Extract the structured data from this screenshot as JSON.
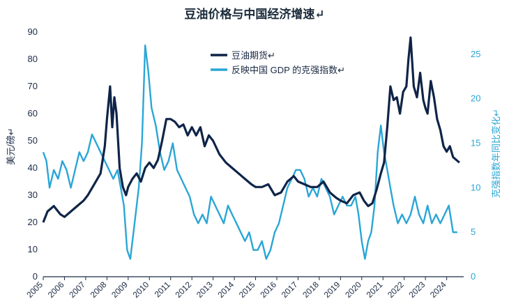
{
  "chart_data": {
    "type": "line",
    "title": "豆油价格与中国经济增速↵",
    "ylabel_left": "美元/磅↵",
    "ylabel_right": "克强指数年同比变化↵",
    "ylim_left": [
      0,
      90
    ],
    "ylim_right": [
      0,
      27.5
    ],
    "xlim": [
      2005,
      2024.8
    ],
    "grid": false,
    "legend_position": "top-center",
    "yticks_left": [
      "0",
      "10",
      "20",
      "30",
      "40",
      "50",
      "60",
      "70",
      "80",
      "90"
    ],
    "yticks_right": [
      "0",
      "5",
      "10",
      "15",
      "20",
      "25"
    ],
    "xticks": [
      "2005",
      "2006",
      "2007",
      "2008",
      "2009",
      "2010",
      "2011",
      "2012",
      "2013",
      "2014",
      "2015",
      "2016",
      "2017",
      "2018",
      "2019",
      "2020",
      "2021",
      "2022",
      "2023",
      "2024"
    ],
    "colors": {
      "soy": "#0f2448",
      "keqiang": "#2aa6d6"
    },
    "series": [
      {
        "name": "豆油期货↵",
        "axis": "left",
        "x": [
          2005.0,
          2005.2,
          2005.5,
          2005.8,
          2006.0,
          2006.3,
          2006.6,
          2006.9,
          2007.1,
          2007.4,
          2007.7,
          2007.9,
          2008.0,
          2008.15,
          2008.25,
          2008.35,
          2008.45,
          2008.6,
          2008.75,
          2008.9,
          2009.0,
          2009.2,
          2009.4,
          2009.6,
          2009.8,
          2010.0,
          2010.2,
          2010.4,
          2010.6,
          2010.8,
          2011.0,
          2011.2,
          2011.4,
          2011.6,
          2011.8,
          2012.0,
          2012.2,
          2012.4,
          2012.6,
          2012.8,
          2013.0,
          2013.3,
          2013.6,
          2013.9,
          2014.2,
          2014.5,
          2014.8,
          2015.0,
          2015.3,
          2015.6,
          2015.9,
          2016.2,
          2016.5,
          2016.8,
          2017.0,
          2017.3,
          2017.6,
          2017.9,
          2018.2,
          2018.5,
          2018.8,
          2019.0,
          2019.3,
          2019.6,
          2019.9,
          2020.1,
          2020.3,
          2020.5,
          2020.7,
          2020.9,
          2021.05,
          2021.2,
          2021.35,
          2021.5,
          2021.65,
          2021.8,
          2021.95,
          2022.1,
          2022.2,
          2022.3,
          2022.45,
          2022.6,
          2022.75,
          2022.9,
          2023.0,
          2023.1,
          2023.25,
          2023.4,
          2023.55,
          2023.7,
          2023.85,
          2024.0,
          2024.15,
          2024.3,
          2024.45,
          2024.6
        ],
        "values": [
          20,
          24,
          26,
          23,
          22,
          24,
          26,
          28,
          30,
          34,
          38,
          48,
          58,
          70,
          55,
          66,
          60,
          40,
          33,
          30,
          33,
          36,
          38,
          35,
          40,
          42,
          40,
          43,
          50,
          58,
          58,
          57,
          55,
          56,
          52,
          55,
          52,
          55,
          48,
          52,
          50,
          45,
          42,
          40,
          38,
          36,
          34,
          33,
          33,
          34,
          30,
          31,
          35,
          37,
          35,
          34,
          33,
          33,
          35,
          31,
          29,
          28,
          27,
          30,
          31,
          28,
          26,
          27,
          32,
          38,
          42,
          55,
          70,
          65,
          66,
          60,
          68,
          70,
          80,
          88,
          70,
          66,
          75,
          65,
          62,
          60,
          72,
          66,
          58,
          54,
          48,
          46,
          48,
          44,
          43,
          42
        ]
      },
      {
        "name": "反映中国 GDP 的克强指数↵",
        "axis": "right",
        "x": [
          2005.0,
          2005.15,
          2005.3,
          2005.5,
          2005.7,
          2005.9,
          2006.1,
          2006.3,
          2006.5,
          2006.7,
          2006.9,
          2007.1,
          2007.3,
          2007.5,
          2007.7,
          2007.9,
          2008.1,
          2008.3,
          2008.5,
          2008.65,
          2008.8,
          2008.95,
          2009.1,
          2009.3,
          2009.5,
          2009.65,
          2009.8,
          2009.95,
          2010.1,
          2010.3,
          2010.5,
          2010.7,
          2010.9,
          2011.1,
          2011.3,
          2011.5,
          2011.7,
          2011.9,
          2012.1,
          2012.3,
          2012.5,
          2012.7,
          2012.9,
          2013.1,
          2013.3,
          2013.5,
          2013.7,
          2013.9,
          2014.1,
          2014.3,
          2014.5,
          2014.7,
          2014.9,
          2015.1,
          2015.3,
          2015.5,
          2015.7,
          2015.9,
          2016.1,
          2016.3,
          2016.5,
          2016.7,
          2016.9,
          2017.1,
          2017.3,
          2017.5,
          2017.7,
          2017.9,
          2018.1,
          2018.3,
          2018.5,
          2018.7,
          2018.9,
          2019.1,
          2019.3,
          2019.5,
          2019.7,
          2019.85,
          2020.0,
          2020.15,
          2020.3,
          2020.45,
          2020.6,
          2020.75,
          2020.9,
          2021.05,
          2021.2,
          2021.35,
          2021.5,
          2021.7,
          2021.9,
          2022.1,
          2022.3,
          2022.5,
          2022.7,
          2022.9,
          2023.1,
          2023.3,
          2023.5,
          2023.7,
          2023.9,
          2024.1,
          2024.3,
          2024.5
        ],
        "values": [
          14,
          13,
          10,
          12,
          11,
          13,
          12,
          10,
          12,
          14,
          13,
          14,
          16,
          15,
          14,
          13,
          12,
          11,
          12,
          10,
          8,
          3,
          2,
          6,
          10,
          15,
          26,
          23,
          19,
          17,
          14,
          12,
          13,
          15,
          12,
          11,
          10,
          9,
          7,
          6,
          7,
          6,
          9,
          8,
          7,
          6,
          8,
          7,
          6,
          5,
          4,
          5,
          3,
          3,
          4,
          2,
          3,
          5,
          6,
          8,
          10,
          11,
          12,
          12,
          11,
          9,
          10,
          9,
          11,
          10,
          9,
          7,
          8,
          9,
          8,
          8,
          9,
          7,
          4,
          2,
          4,
          5,
          8,
          14,
          17,
          14,
          12,
          10,
          8,
          6,
          7,
          6,
          7,
          9,
          7,
          6,
          8,
          6,
          7,
          6,
          7,
          8,
          5,
          5
        ]
      }
    ]
  }
}
